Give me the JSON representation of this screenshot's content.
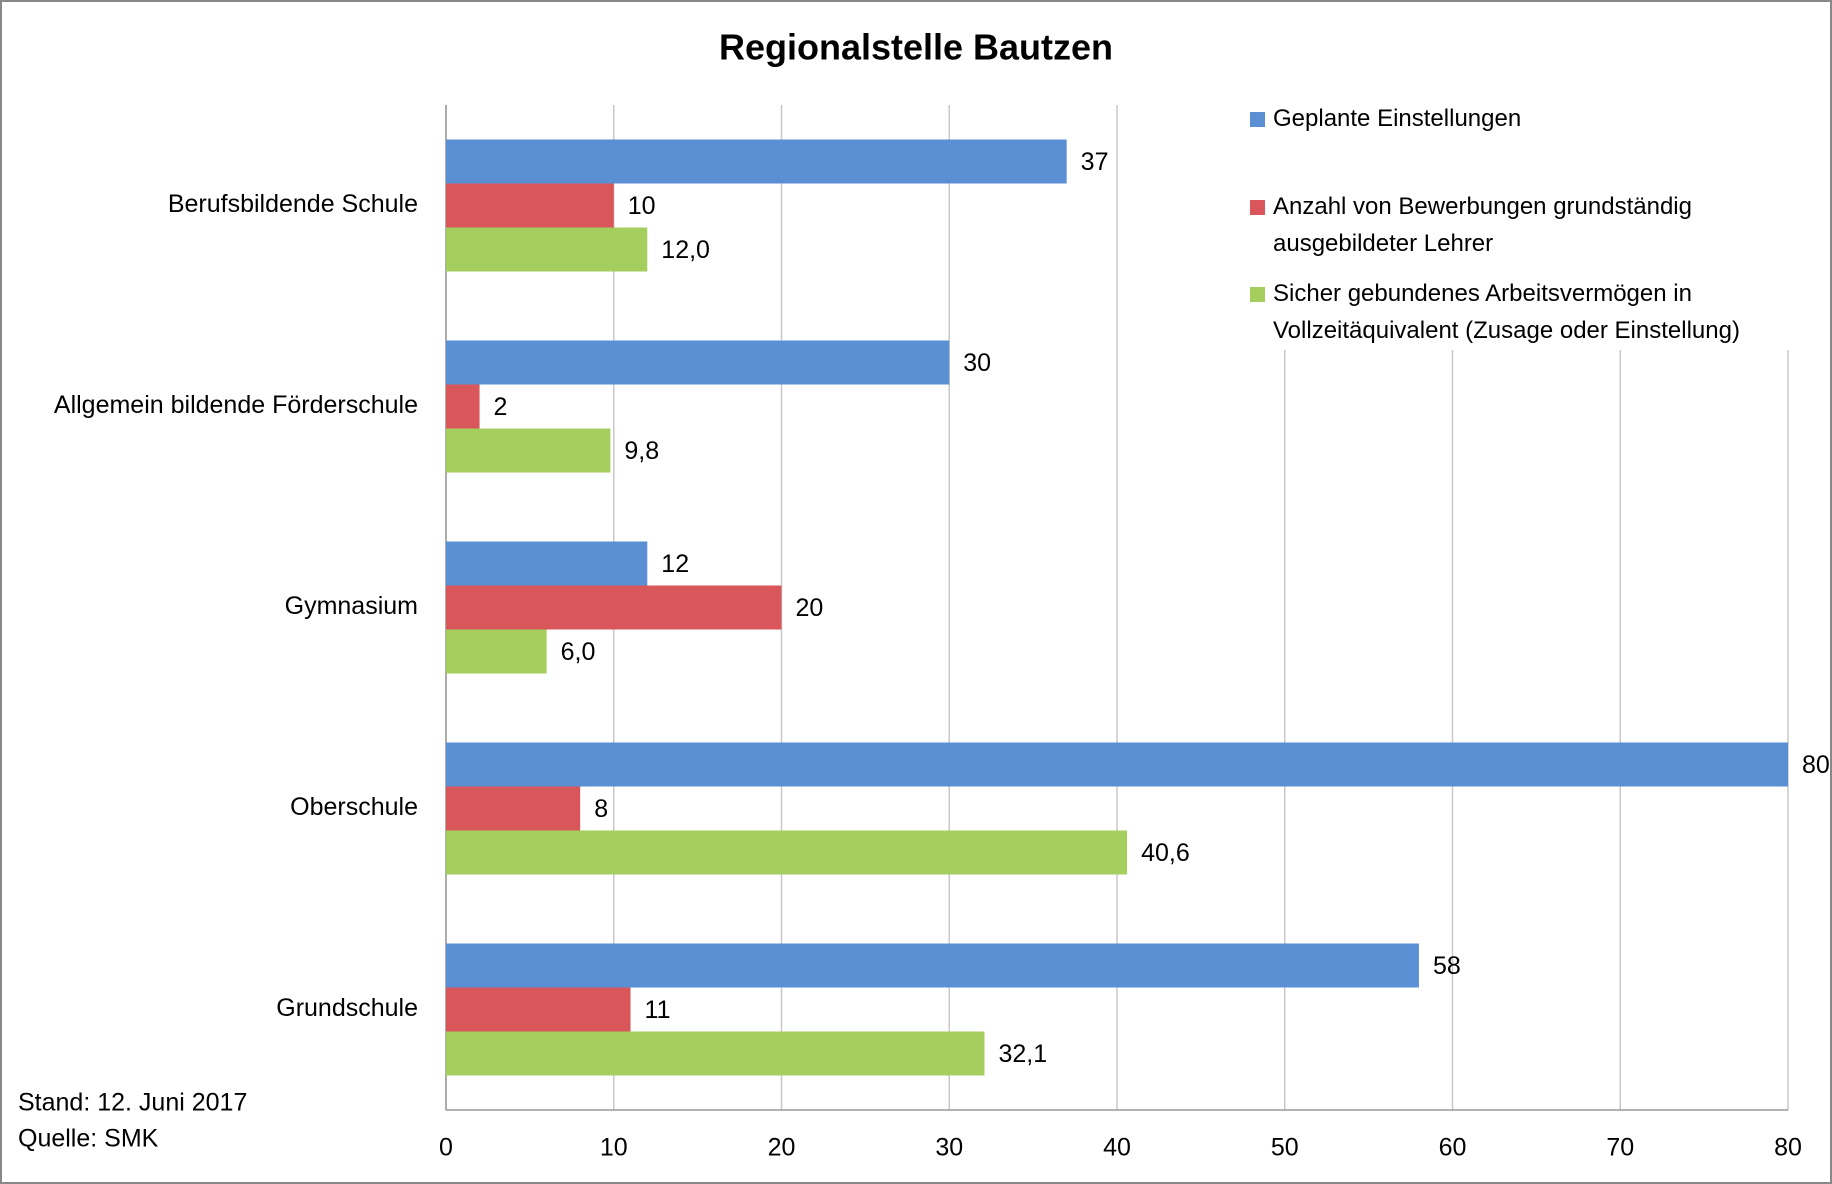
{
  "chart_data": {
    "type": "bar",
    "orientation": "horizontal",
    "title": "Regionalstelle Bautzen",
    "categories": [
      "Berufsbildende Schule",
      "Allgemein bildende Förderschule",
      "Gymnasium",
      "Oberschule",
      "Grundschule"
    ],
    "series": [
      {
        "name": "Geplante Einstellungen",
        "color": "#5b8fd4",
        "values": [
          37,
          30,
          12,
          80,
          58
        ]
      },
      {
        "name": "Anzahl von Bewerbungen grundständig ausgebildeter Lehrer",
        "color": "#d9575a",
        "values": [
          10,
          2,
          20,
          8,
          11
        ]
      },
      {
        "name": "Sicher gebundenes Arbeitsvermögen in Vollzeitäquivalent (Zusage oder Einstellung)",
        "color": "#a4cf5f",
        "values": [
          12,
          9.8,
          6,
          40.6,
          32.1
        ],
        "value_labels": [
          "12,0",
          "9,8",
          "6,0",
          "40,6",
          "32,1"
        ]
      }
    ],
    "xlim": [
      0,
      80
    ],
    "xticks": [
      0,
      10,
      20,
      30,
      40,
      50,
      60,
      70,
      80
    ],
    "grid": true,
    "legend": "top-right",
    "notes": [
      "Stand: 12. Juni 2017",
      "Quelle: SMK"
    ]
  }
}
